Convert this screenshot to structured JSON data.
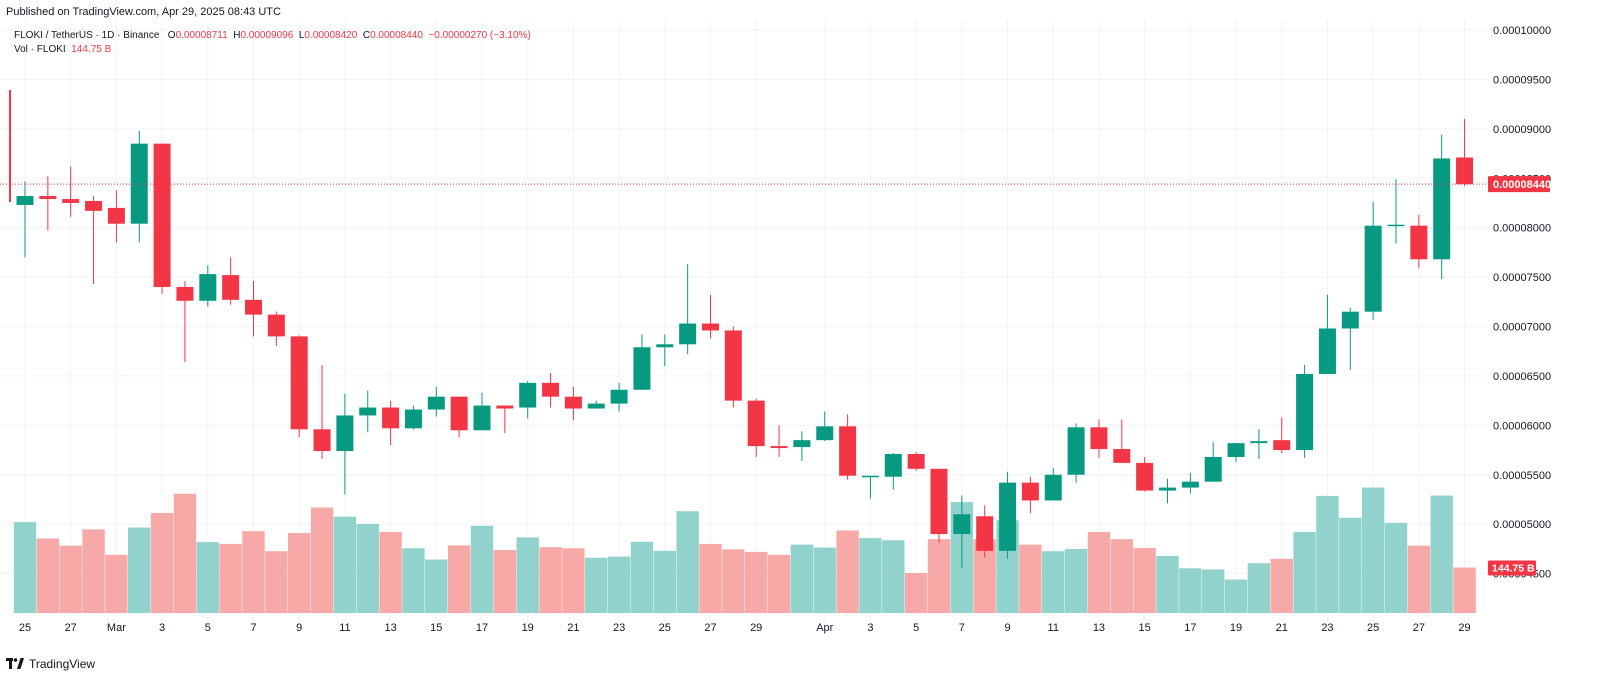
{
  "header": {
    "published": "Published on TradingView.com, Apr 29, 2025 08:43 UTC"
  },
  "legend": {
    "symbol": "FLOKI / TetherUS · 1D · Binance",
    "o_label": "O",
    "o_value": "0.00008711",
    "h_label": "H",
    "h_value": "0.00009096",
    "l_label": "L",
    "l_value": "0.00008420",
    "c_label": "C",
    "c_value": "0.00008440",
    "change": "−0.00000270 (−3.10%)",
    "vol_label": "Vol · FLOKI",
    "vol_value": "144.75 B"
  },
  "footer": {
    "brand": "TradingView"
  },
  "colors": {
    "up": "#089981",
    "down": "#f23645",
    "vol_up": "#92d2cc",
    "vol_down": "#f7a9a7",
    "grid": "#f0f3fa",
    "axis_text": "#131722"
  },
  "chart_data": {
    "type": "candlestick",
    "symbol": "FLOKI / TetherUS",
    "interval": "1D",
    "exchange": "Binance",
    "price_axis": {
      "min": 4e-05,
      "max": 0.0001,
      "ticks": [
        "0.00010000",
        "0.00009500",
        "0.00009000",
        "0.00008500",
        "0.00008000",
        "0.00007500",
        "0.00007000",
        "0.00006500",
        "0.00006000",
        "0.00005500",
        "0.00005000",
        "0.00004500"
      ]
    },
    "last_price_label": "0.00008440",
    "volume_label": "144.75 B",
    "x_tick_labels": [
      {
        "i": 0,
        "label": "25"
      },
      {
        "i": 2,
        "label": "27"
      },
      {
        "i": 4,
        "label": "Mar"
      },
      {
        "i": 6,
        "label": "3"
      },
      {
        "i": 8,
        "label": "5"
      },
      {
        "i": 10,
        "label": "7"
      },
      {
        "i": 12,
        "label": "9"
      },
      {
        "i": 14,
        "label": "11"
      },
      {
        "i": 16,
        "label": "13"
      },
      {
        "i": 18,
        "label": "15"
      },
      {
        "i": 20,
        "label": "17"
      },
      {
        "i": 22,
        "label": "19"
      },
      {
        "i": 24,
        "label": "21"
      },
      {
        "i": 26,
        "label": "23"
      },
      {
        "i": 28,
        "label": "25"
      },
      {
        "i": 30,
        "label": "27"
      },
      {
        "i": 32,
        "label": "29"
      },
      {
        "i": 35,
        "label": "Apr"
      },
      {
        "i": 37,
        "label": "3"
      },
      {
        "i": 39,
        "label": "5"
      },
      {
        "i": 41,
        "label": "7"
      },
      {
        "i": 43,
        "label": "9"
      },
      {
        "i": 45,
        "label": "11"
      },
      {
        "i": 47,
        "label": "13"
      },
      {
        "i": 49,
        "label": "15"
      },
      {
        "i": 51,
        "label": "17"
      },
      {
        "i": 53,
        "label": "19"
      },
      {
        "i": 55,
        "label": "21"
      },
      {
        "i": 57,
        "label": "23"
      },
      {
        "i": 59,
        "label": "25"
      },
      {
        "i": 61,
        "label": "27"
      },
      {
        "i": 63,
        "label": "29"
      }
    ],
    "volume_max": 550,
    "candles": [
      {
        "o": 8.23,
        "h": 8.47,
        "l": 7.7,
        "c": 8.32,
        "v": 250
      },
      {
        "o": 8.32,
        "h": 8.52,
        "l": 7.97,
        "c": 8.29,
        "v": 205
      },
      {
        "o": 8.29,
        "h": 8.62,
        "l": 8.11,
        "c": 8.25,
        "v": 185
      },
      {
        "o": 8.27,
        "h": 8.32,
        "l": 7.43,
        "c": 8.17,
        "v": 230
      },
      {
        "o": 8.2,
        "h": 8.38,
        "l": 7.85,
        "c": 8.04,
        "v": 160
      },
      {
        "o": 8.04,
        "h": 8.98,
        "l": 7.85,
        "c": 8.85,
        "v": 235
      },
      {
        "o": 8.85,
        "h": 8.85,
        "l": 7.33,
        "c": 7.4,
        "v": 275
      },
      {
        "o": 7.4,
        "h": 7.46,
        "l": 6.64,
        "c": 7.26,
        "v": 328
      },
      {
        "o": 7.26,
        "h": 7.62,
        "l": 7.2,
        "c": 7.53,
        "v": 195
      },
      {
        "o": 7.52,
        "h": 7.7,
        "l": 7.22,
        "c": 7.27,
        "v": 190
      },
      {
        "o": 7.27,
        "h": 7.46,
        "l": 6.9,
        "c": 7.12,
        "v": 225
      },
      {
        "o": 7.12,
        "h": 7.15,
        "l": 6.8,
        "c": 6.9,
        "v": 170
      },
      {
        "o": 6.9,
        "h": 6.91,
        "l": 5.88,
        "c": 5.96,
        "v": 220
      },
      {
        "o": 5.96,
        "h": 6.61,
        "l": 5.66,
        "c": 5.74,
        "v": 290
      },
      {
        "o": 5.74,
        "h": 6.32,
        "l": 5.3,
        "c": 6.1,
        "v": 265
      },
      {
        "o": 6.1,
        "h": 6.35,
        "l": 5.93,
        "c": 6.18,
        "v": 245
      },
      {
        "o": 6.18,
        "h": 6.25,
        "l": 5.8,
        "c": 5.97,
        "v": 223
      },
      {
        "o": 5.97,
        "h": 6.2,
        "l": 5.96,
        "c": 6.16,
        "v": 178
      },
      {
        "o": 6.16,
        "h": 6.39,
        "l": 6.09,
        "c": 6.29,
        "v": 147
      },
      {
        "o": 6.29,
        "h": 6.29,
        "l": 5.88,
        "c": 5.95,
        "v": 186
      },
      {
        "o": 5.95,
        "h": 6.33,
        "l": 5.95,
        "c": 6.2,
        "v": 240
      },
      {
        "o": 6.2,
        "h": 6.2,
        "l": 5.92,
        "c": 6.17,
        "v": 173
      },
      {
        "o": 6.18,
        "h": 6.45,
        "l": 6.07,
        "c": 6.43,
        "v": 208
      },
      {
        "o": 6.43,
        "h": 6.53,
        "l": 6.18,
        "c": 6.29,
        "v": 181
      },
      {
        "o": 6.29,
        "h": 6.39,
        "l": 6.05,
        "c": 6.17,
        "v": 178
      },
      {
        "o": 6.17,
        "h": 6.25,
        "l": 6.17,
        "c": 6.22,
        "v": 152
      },
      {
        "o": 6.22,
        "h": 6.43,
        "l": 6.14,
        "c": 6.36,
        "v": 155
      },
      {
        "o": 6.36,
        "h": 6.92,
        "l": 6.36,
        "c": 6.79,
        "v": 196
      },
      {
        "o": 6.79,
        "h": 6.92,
        "l": 6.6,
        "c": 6.82,
        "v": 171
      },
      {
        "o": 6.82,
        "h": 7.63,
        "l": 6.72,
        "c": 7.03,
        "v": 280
      },
      {
        "o": 7.03,
        "h": 7.32,
        "l": 6.88,
        "c": 6.96,
        "v": 190
      },
      {
        "o": 6.96,
        "h": 7.0,
        "l": 6.18,
        "c": 6.25,
        "v": 175
      },
      {
        "o": 6.25,
        "h": 6.27,
        "l": 5.68,
        "c": 5.79,
        "v": 168
      },
      {
        "o": 5.79,
        "h": 6.0,
        "l": 5.68,
        "c": 5.77,
        "v": 160
      },
      {
        "o": 5.78,
        "h": 5.94,
        "l": 5.64,
        "c": 5.85,
        "v": 188
      },
      {
        "o": 5.85,
        "h": 6.14,
        "l": 5.84,
        "c": 5.99,
        "v": 180
      },
      {
        "o": 5.99,
        "h": 6.11,
        "l": 5.45,
        "c": 5.49,
        "v": 227
      },
      {
        "o": 5.49,
        "h": 5.48,
        "l": 5.26,
        "c": 5.49,
        "v": 206
      },
      {
        "o": 5.48,
        "h": 5.72,
        "l": 5.35,
        "c": 5.71,
        "v": 200
      },
      {
        "o": 5.71,
        "h": 5.73,
        "l": 5.54,
        "c": 5.56,
        "v": 110
      },
      {
        "o": 5.56,
        "h": 5.56,
        "l": 4.81,
        "c": 4.9,
        "v": 203
      },
      {
        "o": 4.9,
        "h": 5.29,
        "l": 4.56,
        "c": 5.1,
        "v": 305
      },
      {
        "o": 5.08,
        "h": 5.19,
        "l": 4.66,
        "c": 4.73,
        "v": 203
      },
      {
        "o": 4.73,
        "h": 5.53,
        "l": 4.65,
        "c": 5.42,
        "v": 255
      },
      {
        "o": 5.42,
        "h": 5.48,
        "l": 5.11,
        "c": 5.24,
        "v": 188
      },
      {
        "o": 5.24,
        "h": 5.57,
        "l": 5.24,
        "c": 5.5,
        "v": 170
      },
      {
        "o": 5.5,
        "h": 6.02,
        "l": 5.42,
        "c": 5.98,
        "v": 176
      },
      {
        "o": 5.98,
        "h": 6.06,
        "l": 5.67,
        "c": 5.76,
        "v": 223
      },
      {
        "o": 5.76,
        "h": 6.06,
        "l": 5.62,
        "c": 5.62,
        "v": 203
      },
      {
        "o": 5.62,
        "h": 5.68,
        "l": 5.33,
        "c": 5.34,
        "v": 179
      },
      {
        "o": 5.34,
        "h": 5.46,
        "l": 5.21,
        "c": 5.37,
        "v": 157
      },
      {
        "o": 5.37,
        "h": 5.52,
        "l": 5.31,
        "c": 5.43,
        "v": 123
      },
      {
        "o": 5.43,
        "h": 5.83,
        "l": 5.43,
        "c": 5.68,
        "v": 120
      },
      {
        "o": 5.68,
        "h": 5.82,
        "l": 5.63,
        "c": 5.82,
        "v": 92
      },
      {
        "o": 5.82,
        "h": 5.96,
        "l": 5.66,
        "c": 5.84,
        "v": 137
      },
      {
        "o": 5.85,
        "h": 6.08,
        "l": 5.72,
        "c": 5.75,
        "v": 149
      },
      {
        "o": 5.75,
        "h": 6.61,
        "l": 5.67,
        "c": 6.52,
        "v": 223
      },
      {
        "o": 6.52,
        "h": 7.32,
        "l": 6.52,
        "c": 6.98,
        "v": 322
      },
      {
        "o": 6.98,
        "h": 7.19,
        "l": 6.56,
        "c": 7.15,
        "v": 262
      },
      {
        "o": 7.15,
        "h": 8.26,
        "l": 7.07,
        "c": 8.02,
        "v": 345
      },
      {
        "o": 8.02,
        "h": 8.49,
        "l": 7.84,
        "c": 8.03,
        "v": 248
      },
      {
        "o": 8.02,
        "h": 8.13,
        "l": 7.59,
        "c": 7.68,
        "v": 185
      },
      {
        "o": 7.68,
        "h": 8.94,
        "l": 7.48,
        "c": 8.7,
        "v": 323
      },
      {
        "o": 8.71,
        "h": 9.1,
        "l": 8.42,
        "c": 8.44,
        "v": 125
      }
    ]
  }
}
